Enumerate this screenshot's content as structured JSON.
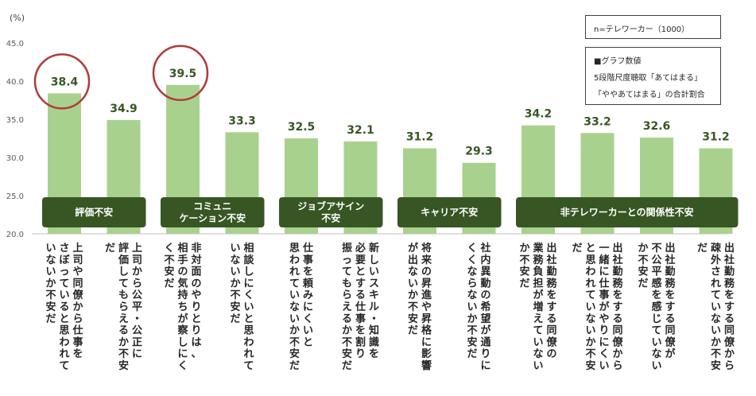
{
  "chart_data": {
    "type": "bar",
    "unit_label": "(%)",
    "ylim": [
      20,
      45
    ],
    "yticks": [
      "20.0",
      "25.0",
      "30.0",
      "35.0",
      "40.0",
      "45.0"
    ],
    "bar_color": "#a9d18e",
    "group_color": "#375623",
    "highlight_color": "#b03a3a",
    "label_color": "#375623",
    "categories": [
      "上司や同僚から仕事をさぼっていると思われていないか不安だ",
      "上司から公平・公正に評価してもらえるか不安だ",
      "非対面のやりとりは、相手の気持ちが察しにくく不安だ",
      "相談しにくいと思われていないか不安だ",
      "仕事を頼みにくいと思われていないか不安だ",
      "新しいスキル・知識を必要とする仕事を割り振ってもらえるか不安だ",
      "将来の昇進や昇格に影響が出ないか不安だ",
      "社内異動の希望が通りにくくならないか不安だ",
      "出社勤務をする同僚の業務負担が増えていないか不安だ",
      "出社勤務をする同僚から一緒に仕事がやりにくいと思われていないか不安だ",
      "出社勤務をする同僚が不公平感を感じていないか不安だ",
      "出社勤務をする同僚から疎外されていないか不安だ"
    ],
    "category_lines": [
      [
        "上司や同僚から仕事を",
        "さぼっていると思われて",
        "いないか不安だ"
      ],
      [
        "上司から公平・公正に",
        "評価してもらえるか不安",
        "だ"
      ],
      [
        "非対面のやりとりは、",
        "相手の気持ちが察しにく",
        "く不安だ"
      ],
      [
        "相談しにくいと思われて",
        "いないか不安だ"
      ],
      [
        "仕事を頼みにくいと",
        "思われていないか不安だ"
      ],
      [
        "新しいスキル・知識を",
        "必要とする仕事を割り",
        "振ってもらえるか不安だ"
      ],
      [
        "将来の昇進や昇格に影響",
        "が出ないか不安だ"
      ],
      [
        "社内異動の希望が通りに",
        "くくならないか不安だ"
      ],
      [
        "出社勤務をする同僚の",
        "業務負担が増えていない",
        "か不安だ"
      ],
      [
        "出社勤務をする同僚から",
        "一緒に仕事がやりにくい",
        "と思われていないか不安",
        "だ"
      ],
      [
        "出社勤務をする同僚が",
        "不公平感を感じていない",
        "か不安だ"
      ],
      [
        "出社勤務をする同僚から",
        "疎外されていないか不安",
        "だ"
      ]
    ],
    "values": [
      38.4,
      34.9,
      39.5,
      33.3,
      32.5,
      32.1,
      31.2,
      29.3,
      34.2,
      33.2,
      32.6,
      31.2
    ],
    "value_labels": [
      "38.4",
      "34.9",
      "39.5",
      "33.3",
      "32.5",
      "32.1",
      "31.2",
      "29.3",
      "34.2",
      "33.2",
      "32.6",
      "31.2"
    ],
    "highlighted": [
      0,
      2
    ],
    "groups": [
      {
        "label_lines": [
          "評価不安"
        ],
        "start": 0,
        "end": 1
      },
      {
        "label_lines": [
          "コミュニ",
          "ケーション不安"
        ],
        "start": 2,
        "end": 3
      },
      {
        "label_lines": [
          "ジョブアサイン",
          "不安"
        ],
        "start": 4,
        "end": 5
      },
      {
        "label_lines": [
          "キャリア不安"
        ],
        "start": 6,
        "end": 7
      },
      {
        "label_lines": [
          "非テレワーカーとの関係性不安"
        ],
        "start": 8,
        "end": 11
      }
    ]
  },
  "legend_box": {
    "sample": "n=テレワーカー（1000）",
    "note_lines": [
      "■グラフ数値",
      "5段階尺度聴取「あてはまる」",
      "「ややあてはまる」の合計割合"
    ]
  }
}
